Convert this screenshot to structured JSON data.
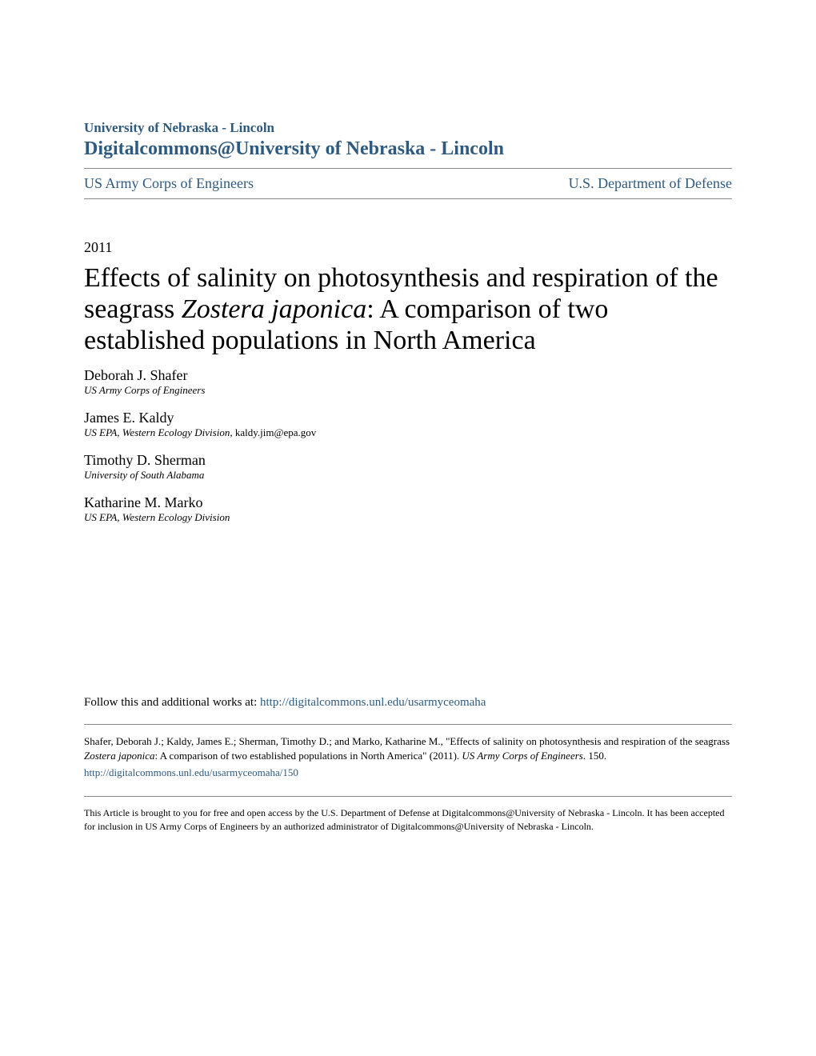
{
  "header": {
    "institution": "University of Nebraska - Lincoln",
    "repository": "Digitalcommons@University of Nebraska - Lincoln",
    "left_link": "US Army Corps of Engineers",
    "right_link": "U.S. Department of Defense"
  },
  "year": "2011",
  "title_part1": "Effects of salinity on photosynthesis and respiration of the seagrass ",
  "title_italic": "Zostera japonica",
  "title_part2": ": A comparison of two established populations in North America",
  "authors": [
    {
      "name": "Deborah J. Shafer",
      "affiliation": "US Army Corps of Engineers",
      "email": ""
    },
    {
      "name": "James E. Kaldy",
      "affiliation": "US EPA, Western Ecology Division",
      "email": ", kaldy.jim@epa.gov"
    },
    {
      "name": "Timothy D. Sherman",
      "affiliation": "University of South Alabama",
      "email": ""
    },
    {
      "name": "Katharine M. Marko",
      "affiliation": "US EPA, Western Ecology Division",
      "email": ""
    }
  ],
  "follow": {
    "text": "Follow this and additional works at: ",
    "link": "http://digitalcommons.unl.edu/usarmyceomaha"
  },
  "citation": {
    "part1": "Shafer, Deborah J.; Kaldy, James E.; Sherman, Timothy D.; and Marko, Katharine M., \"Effects of salinity on photosynthesis and respiration of the seagrass ",
    "italic1": "Zostera japonica",
    "part2": ": A comparison of two established populations in North America\" (2011). ",
    "italic2": "US Army Corps of Engineers",
    "part3": ". 150.",
    "link": "http://digitalcommons.unl.edu/usarmyceomaha/150"
  },
  "footer": "This Article is brought to you for free and open access by the U.S. Department of Defense at Digitalcommons@University of Nebraska - Lincoln. It has been accepted for inclusion in US Army Corps of Engineers by an authorized administrator of Digitalcommons@University of Nebraska - Lincoln.",
  "colors": {
    "link_color": "#2e5a7f",
    "text_color": "#000000",
    "divider_color": "#888888",
    "background_color": "#ffffff"
  }
}
